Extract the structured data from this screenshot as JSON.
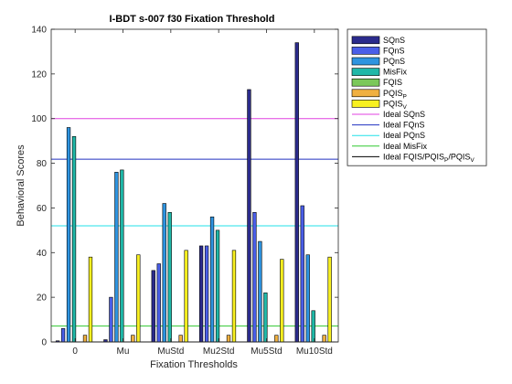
{
  "chart_data": {
    "type": "bar",
    "title": "I-BDT s-007 f30 Fixation Threshold",
    "xlabel": "Fixation Thresholds",
    "ylabel": "Behavioral Scores",
    "ylim": [
      0,
      140
    ],
    "yticks": [
      0,
      20,
      40,
      60,
      80,
      100,
      120,
      140
    ],
    "categories": [
      "0",
      "Mu",
      "MuStd",
      "Mu2Std",
      "Mu5Std",
      "Mu10Std"
    ],
    "series": [
      {
        "name": "SQnS",
        "color": "#2b2b8c",
        "values": [
          0.5,
          1,
          32,
          43,
          113,
          134
        ]
      },
      {
        "name": "FQnS",
        "color": "#4a5ee8",
        "values": [
          6,
          20,
          35,
          43,
          58,
          61
        ]
      },
      {
        "name": "PQnS",
        "color": "#2e94e0",
        "values": [
          96,
          76,
          62,
          56,
          45,
          39
        ]
      },
      {
        "name": "MisFix",
        "color": "#20b8a8",
        "values": [
          92,
          77,
          58,
          50,
          22,
          14
        ]
      },
      {
        "name": "FQIS",
        "color": "#7bc85a",
        "values": [
          0,
          0,
          0,
          0,
          0,
          0
        ]
      },
      {
        "name": "PQIS_P",
        "color": "#f0b040",
        "values": [
          3,
          3,
          3,
          3,
          3,
          3
        ]
      },
      {
        "name": "PQIS_V",
        "color": "#f8f020",
        "values": [
          38,
          39,
          41,
          41,
          37,
          38
        ]
      }
    ],
    "ideal_lines": [
      {
        "name": "Ideal SQnS",
        "color": "#e040e0",
        "value": 100
      },
      {
        "name": "Ideal FQnS",
        "color": "#2030c0",
        "value": 81.8
      },
      {
        "name": "Ideal PQnS",
        "color": "#20e0e8",
        "value": 52
      },
      {
        "name": "Ideal MisFix",
        "color": "#30c830",
        "value": 7.1
      },
      {
        "name": "Ideal FQIS/PQIS_P/PQIS_V",
        "color": "#000000",
        "value": 0
      }
    ],
    "legend_position": "outside-right",
    "grid": false
  }
}
